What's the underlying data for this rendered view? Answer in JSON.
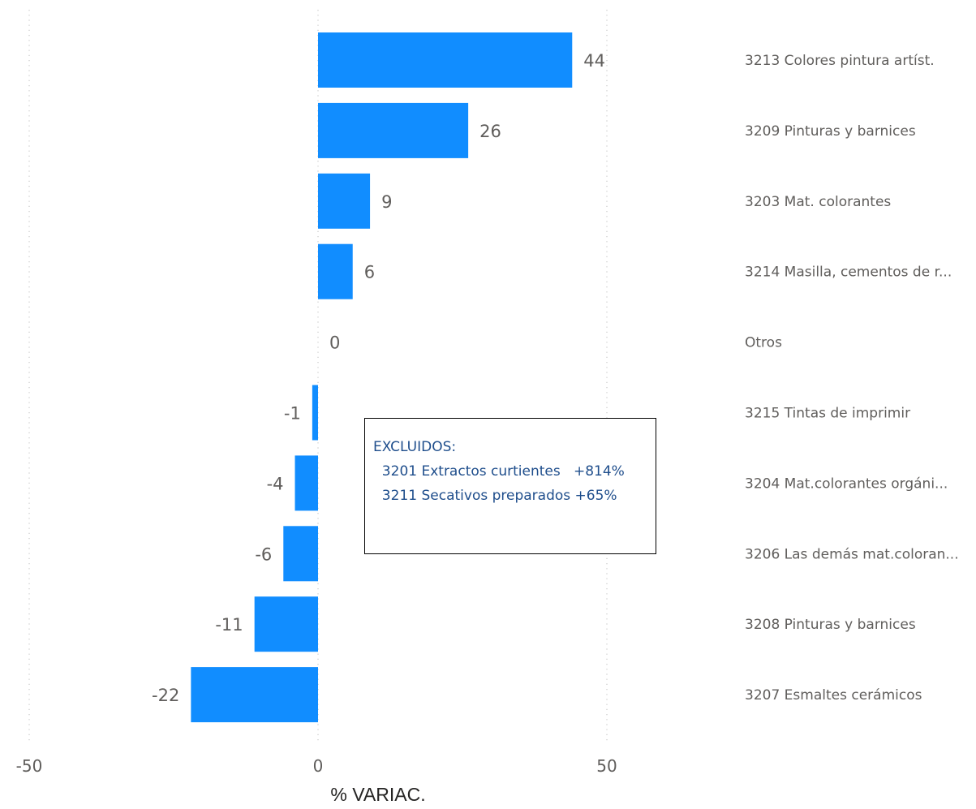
{
  "chart_data": {
    "type": "bar",
    "orientation": "horizontal",
    "categories": [
      "3213 Colores pintura artíst.",
      "3209 Pinturas y barnices",
      "3203 Mat. colorantes",
      "3214 Masilla, cementos de r...",
      "Otros",
      "3215 Tintas de imprimir",
      "3204 Mat.colorantes orgáni...",
      "3206 Las demás mat.coloran...",
      "3208 Pinturas y barnices",
      "3207 Esmaltes cerámicos"
    ],
    "values": [
      44,
      26,
      9,
      6,
      0,
      -1,
      -4,
      -6,
      -11,
      -22
    ],
    "value_labels": [
      "44",
      "26",
      "9",
      "6",
      "0",
      "-1",
      "-4",
      "-6",
      "-11",
      "-22"
    ],
    "xlabel": "% VARIAC.",
    "xlim": [
      -50,
      60
    ],
    "ticks": [
      -50,
      0,
      50
    ],
    "tick_labels": [
      "-50",
      "0",
      "50"
    ],
    "grid": "vertical dotted",
    "bar_color": "#118dff",
    "category_label_position": "right"
  },
  "annotation": {
    "title": "EXCLUIDOS:",
    "lines": [
      "  3201 Extractos curtientes   +814%",
      "  3211 Secativos preparados +65%"
    ]
  }
}
